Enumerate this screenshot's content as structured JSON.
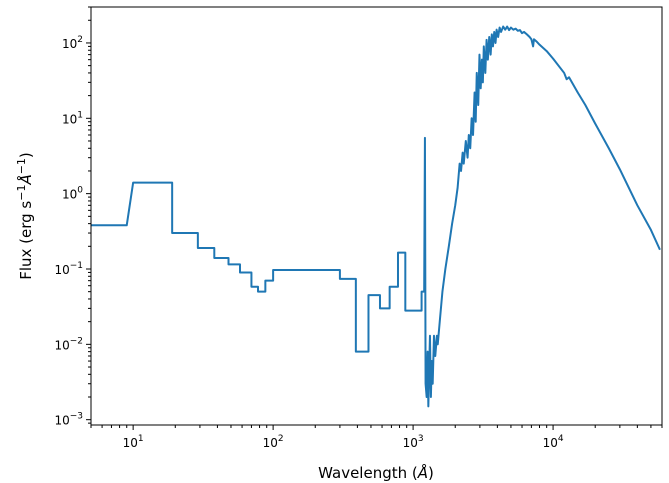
{
  "chart_data": {
    "type": "line",
    "title": "",
    "xscale": "log",
    "yscale": "log",
    "xlim": [
      5,
      60000
    ],
    "ylim": [
      0.00085,
      300
    ],
    "grid": false,
    "legend": "none",
    "line_color": "#1f77b4",
    "xlabel": {
      "prefix": "Wavelength (",
      "symbol": "Å",
      "suffix": ")"
    },
    "ylabel": {
      "prefix": "Flux (erg s",
      "exp1": "−1",
      "symbol": "Å",
      "exp2": "−1",
      "suffix": ")"
    },
    "x_ticks": [
      {
        "value": 10,
        "base": "10",
        "exp": "1"
      },
      {
        "value": 100,
        "base": "10",
        "exp": "2"
      },
      {
        "value": 1000,
        "base": "10",
        "exp": "3"
      },
      {
        "value": 10000,
        "base": "10",
        "exp": "4"
      }
    ],
    "y_ticks": [
      {
        "value": 0.001,
        "base": "10",
        "exp": "−3"
      },
      {
        "value": 0.01,
        "base": "10",
        "exp": "−2"
      },
      {
        "value": 0.1,
        "base": "10",
        "exp": "−1"
      },
      {
        "value": 1,
        "base": "10",
        "exp": "0"
      },
      {
        "value": 10,
        "base": "10",
        "exp": "1"
      },
      {
        "value": 100,
        "base": "10",
        "exp": "2"
      }
    ],
    "series": [
      {
        "values": [
          [
            5,
            0.38
          ],
          [
            9,
            0.38
          ],
          [
            10,
            1.4
          ],
          [
            19,
            1.4
          ],
          [
            19,
            0.3
          ],
          [
            29,
            0.3
          ],
          [
            29,
            0.19
          ],
          [
            38,
            0.19
          ],
          [
            38,
            0.14
          ],
          [
            48,
            0.14
          ],
          [
            48,
            0.115
          ],
          [
            58,
            0.115
          ],
          [
            58,
            0.09
          ],
          [
            70,
            0.09
          ],
          [
            70,
            0.058
          ],
          [
            78,
            0.058
          ],
          [
            78,
            0.05
          ],
          [
            88,
            0.05
          ],
          [
            88,
            0.07
          ],
          [
            100,
            0.07
          ],
          [
            100,
            0.097
          ],
          [
            300,
            0.097
          ],
          [
            300,
            0.074
          ],
          [
            390,
            0.074
          ],
          [
            390,
            0.008
          ],
          [
            480,
            0.008
          ],
          [
            480,
            0.045
          ],
          [
            580,
            0.045
          ],
          [
            580,
            0.03
          ],
          [
            680,
            0.03
          ],
          [
            680,
            0.058
          ],
          [
            780,
            0.058
          ],
          [
            780,
            0.165
          ],
          [
            880,
            0.165
          ],
          [
            880,
            0.028
          ],
          [
            1150,
            0.028
          ],
          [
            1150,
            0.05
          ],
          [
            1200,
            0.05
          ],
          [
            1215,
            5.5
          ],
          [
            1228,
            0.003
          ],
          [
            1250,
            0.002
          ],
          [
            1270,
            0.008
          ],
          [
            1285,
            0.0015
          ],
          [
            1300,
            0.004
          ],
          [
            1320,
            0.013
          ],
          [
            1340,
            0.002
          ],
          [
            1360,
            0.006
          ],
          [
            1380,
            0.003
          ],
          [
            1410,
            0.013
          ],
          [
            1440,
            0.007
          ],
          [
            1480,
            0.013
          ],
          [
            1500,
            0.01
          ],
          [
            1550,
            0.02
          ],
          [
            1620,
            0.05
          ],
          [
            1700,
            0.1
          ],
          [
            1800,
            0.2
          ],
          [
            1900,
            0.4
          ],
          [
            2000,
            0.7
          ],
          [
            2080,
            1.2
          ],
          [
            2150,
            2.5
          ],
          [
            2200,
            2
          ],
          [
            2260,
            3.5
          ],
          [
            2300,
            2.5
          ],
          [
            2380,
            5
          ],
          [
            2450,
            3
          ],
          [
            2500,
            6
          ],
          [
            2560,
            4
          ],
          [
            2620,
            10
          ],
          [
            2680,
            6
          ],
          [
            2750,
            22
          ],
          [
            2800,
            9
          ],
          [
            2850,
            40
          ],
          [
            2920,
            15
          ],
          [
            2980,
            70
          ],
          [
            3040,
            25
          ],
          [
            3100,
            60
          ],
          [
            3150,
            30
          ],
          [
            3200,
            90
          ],
          [
            3280,
            40
          ],
          [
            3350,
            110
          ],
          [
            3420,
            60
          ],
          [
            3500,
            120
          ],
          [
            3580,
            70
          ],
          [
            3650,
            130
          ],
          [
            3720,
            90
          ],
          [
            3800,
            140
          ],
          [
            3880,
            100
          ],
          [
            3950,
            150
          ],
          [
            4050,
            120
          ],
          [
            4150,
            160
          ],
          [
            4250,
            140
          ],
          [
            4400,
            165
          ],
          [
            4550,
            150
          ],
          [
            4700,
            165
          ],
          [
            4850,
            148
          ],
          [
            5000,
            160
          ],
          [
            5200,
            150
          ],
          [
            5400,
            155
          ],
          [
            5600,
            145
          ],
          [
            5800,
            148
          ],
          [
            6000,
            135
          ],
          [
            6200,
            140
          ],
          [
            6500,
            130
          ],
          [
            6800,
            120
          ],
          [
            7000,
            112
          ],
          [
            7200,
            90
          ],
          [
            7300,
            112
          ],
          [
            7600,
            105
          ],
          [
            8000,
            95
          ],
          [
            9000,
            78
          ],
          [
            10000,
            62
          ],
          [
            12000,
            40
          ],
          [
            12500,
            33
          ],
          [
            13000,
            35
          ],
          [
            15000,
            22
          ],
          [
            17000,
            15
          ],
          [
            20000,
            8.5
          ],
          [
            25000,
            4
          ],
          [
            30000,
            2.1
          ],
          [
            40000,
            0.7
          ],
          [
            50000,
            0.33
          ],
          [
            58000,
            0.18
          ]
        ]
      }
    ]
  }
}
